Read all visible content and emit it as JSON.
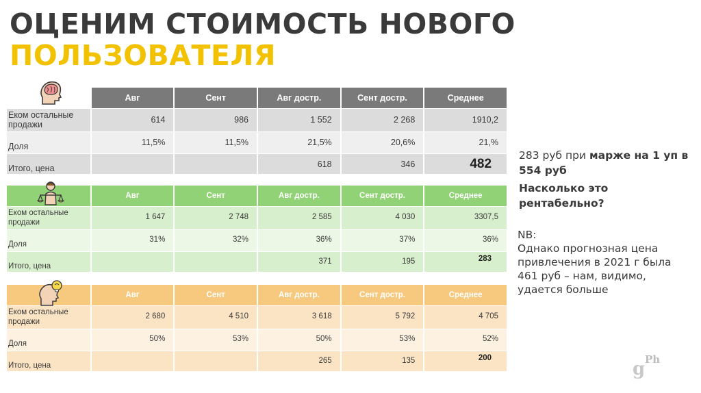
{
  "title": {
    "line1": "ОЦЕНИМ СТОИМОСТЬ НОВОГО",
    "line2": "ПОЛЬЗОВАТЕЛЯ"
  },
  "colors": {
    "title_dark": "#3a3a3a",
    "title_accent": "#f2c200",
    "gray": "#7a7a7a",
    "green": "#92d276",
    "orange": "#f6c97f"
  },
  "tables": [
    {
      "icon": "brain-head-icon",
      "headers": [
        "Авг",
        "Сент",
        "Авг достр.",
        "Сент достр.",
        "Среднее"
      ],
      "rows": [
        {
          "label": "Еком остальные продажи",
          "values": [
            "614",
            "986",
            "1 552",
            "2 268",
            "1910,2"
          ]
        },
        {
          "label": "Доля",
          "values": [
            "11,5%",
            "11,5%",
            "21,5%",
            "20,6%",
            "21,%"
          ]
        },
        {
          "label": "Итого, цена",
          "values": [
            "",
            "",
            "618",
            "346",
            "482"
          ]
        }
      ]
    },
    {
      "icon": "justice-scales-person-icon",
      "headers": [
        "Авг",
        "Сент",
        "Авг достр.",
        "Сент достр.",
        "Среднее"
      ],
      "rows": [
        {
          "label": "Еком остальные продажи",
          "values": [
            "1 647",
            "2 748",
            "2 585",
            "4 030",
            "3307,5"
          ]
        },
        {
          "label": "Доля",
          "values": [
            "31%",
            "32%",
            "36%",
            "37%",
            "36%"
          ]
        },
        {
          "label": "Итого, цена",
          "values": [
            "",
            "",
            "371",
            "195",
            "283"
          ]
        }
      ]
    },
    {
      "icon": "idea-head-icon",
      "headers": [
        "Авг",
        "Сент",
        "Авг достр.",
        "Сент достр.",
        "Среднее"
      ],
      "rows": [
        {
          "label": "Еком остальные продажи",
          "values": [
            "2 680",
            "4 510",
            "3 618",
            "5 792",
            "4 705"
          ]
        },
        {
          "label": "Доля",
          "values": [
            "50%",
            "53%",
            "50%",
            "53%",
            "52%"
          ]
        },
        {
          "label": "Итого, цена",
          "values": [
            "",
            "",
            "265",
            "135",
            "200"
          ]
        }
      ]
    }
  ],
  "side": {
    "line_a": "283 руб при ",
    "line_a_bold": "марже на 1 уп в 554 руб",
    "question": "Насколько это рентабельно?",
    "nb_label": "NB:",
    "nb_text": "Однако прогнозная цена привлечения в 2021 г была 461 руб – нам, видимо, удается больше"
  },
  "logo": {
    "main": "g",
    "sup": "Ph"
  }
}
